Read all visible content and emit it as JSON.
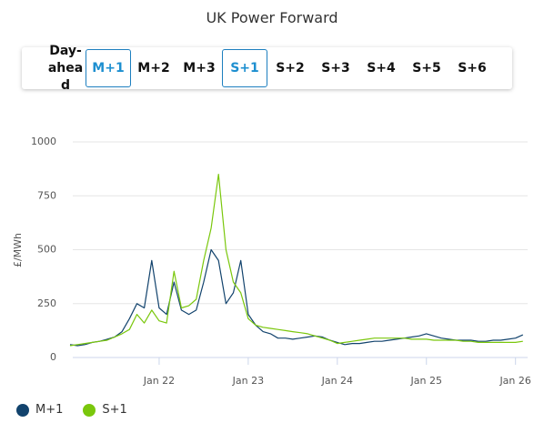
{
  "title": "UK Power Forward",
  "buttons": [
    {
      "label": "Day-ahead",
      "selected": false
    },
    {
      "label": "M+1",
      "selected": true
    },
    {
      "label": "M+2",
      "selected": false
    },
    {
      "label": "M+3",
      "selected": false
    },
    {
      "label": "S+1",
      "selected": true
    },
    {
      "label": "S+2",
      "selected": false
    },
    {
      "label": "S+3",
      "selected": false
    },
    {
      "label": "S+4",
      "selected": false
    },
    {
      "label": "S+5",
      "selected": false
    },
    {
      "label": "S+6",
      "selected": false
    }
  ],
  "chart_data": {
    "type": "line",
    "y_label": "£/MWh",
    "grid": true,
    "legend": "bottom-left",
    "x": [
      "2021-01",
      "2021-02",
      "2021-03",
      "2021-04",
      "2021-05",
      "2021-06",
      "2021-07",
      "2021-08",
      "2021-09",
      "2021-10",
      "2021-11",
      "2021-12",
      "2022-01",
      "2022-02",
      "2022-03",
      "2022-04",
      "2022-05",
      "2022-06",
      "2022-07",
      "2022-08",
      "2022-09",
      "2022-10",
      "2022-11",
      "2022-12",
      "2023-01",
      "2023-02",
      "2023-03",
      "2023-04",
      "2023-05",
      "2023-06",
      "2023-07",
      "2023-08",
      "2023-09",
      "2023-10",
      "2023-11",
      "2023-12",
      "2024-01",
      "2024-02",
      "2024-03",
      "2024-04",
      "2024-05",
      "2024-06",
      "2024-07",
      "2024-08",
      "2024-09",
      "2024-10",
      "2024-11",
      "2024-12",
      "2025-01",
      "2025-02",
      "2025-03",
      "2025-04",
      "2025-05",
      "2025-06",
      "2025-07",
      "2025-08",
      "2025-09",
      "2025-10",
      "2025-11",
      "2025-12",
      "2026-01",
      "2026-02"
    ],
    "xlim": [
      "2021-01",
      "2026-03"
    ],
    "xticks": [
      {
        "value": "2022-01",
        "label": "Jan 22"
      },
      {
        "value": "2023-01",
        "label": "Jan 23"
      },
      {
        "value": "2024-01",
        "label": "Jan 24"
      },
      {
        "value": "2025-01",
        "label": "Jan 25"
      },
      {
        "value": "2026-01",
        "label": "Jan 26"
      }
    ],
    "ylim": [
      0,
      1000
    ],
    "yticks": [
      0,
      250,
      500,
      750,
      1000
    ],
    "series": [
      {
        "name": "M+1",
        "color": "#12436d",
        "values": [
          60,
          55,
          60,
          70,
          75,
          85,
          95,
          120,
          180,
          250,
          230,
          450,
          230,
          200,
          350,
          220,
          200,
          220,
          350,
          500,
          450,
          250,
          300,
          450,
          200,
          150,
          120,
          110,
          90,
          90,
          85,
          90,
          95,
          100,
          95,
          80,
          70,
          60,
          65,
          65,
          70,
          75,
          75,
          80,
          85,
          90,
          95,
          100,
          110,
          100,
          90,
          85,
          80,
          80,
          80,
          75,
          75,
          80,
          80,
          85,
          90,
          105
        ]
      },
      {
        "name": "S+1",
        "color": "#7ac70c",
        "values": [
          55,
          60,
          65,
          70,
          75,
          80,
          95,
          110,
          130,
          200,
          160,
          220,
          170,
          160,
          400,
          230,
          240,
          270,
          450,
          600,
          850,
          500,
          350,
          300,
          180,
          150,
          140,
          135,
          130,
          125,
          120,
          115,
          110,
          100,
          90,
          80,
          65,
          70,
          75,
          80,
          85,
          90,
          90,
          90,
          90,
          90,
          85,
          85,
          85,
          80,
          80,
          80,
          80,
          75,
          75,
          70,
          70,
          70,
          70,
          70,
          70,
          75
        ]
      }
    ]
  }
}
